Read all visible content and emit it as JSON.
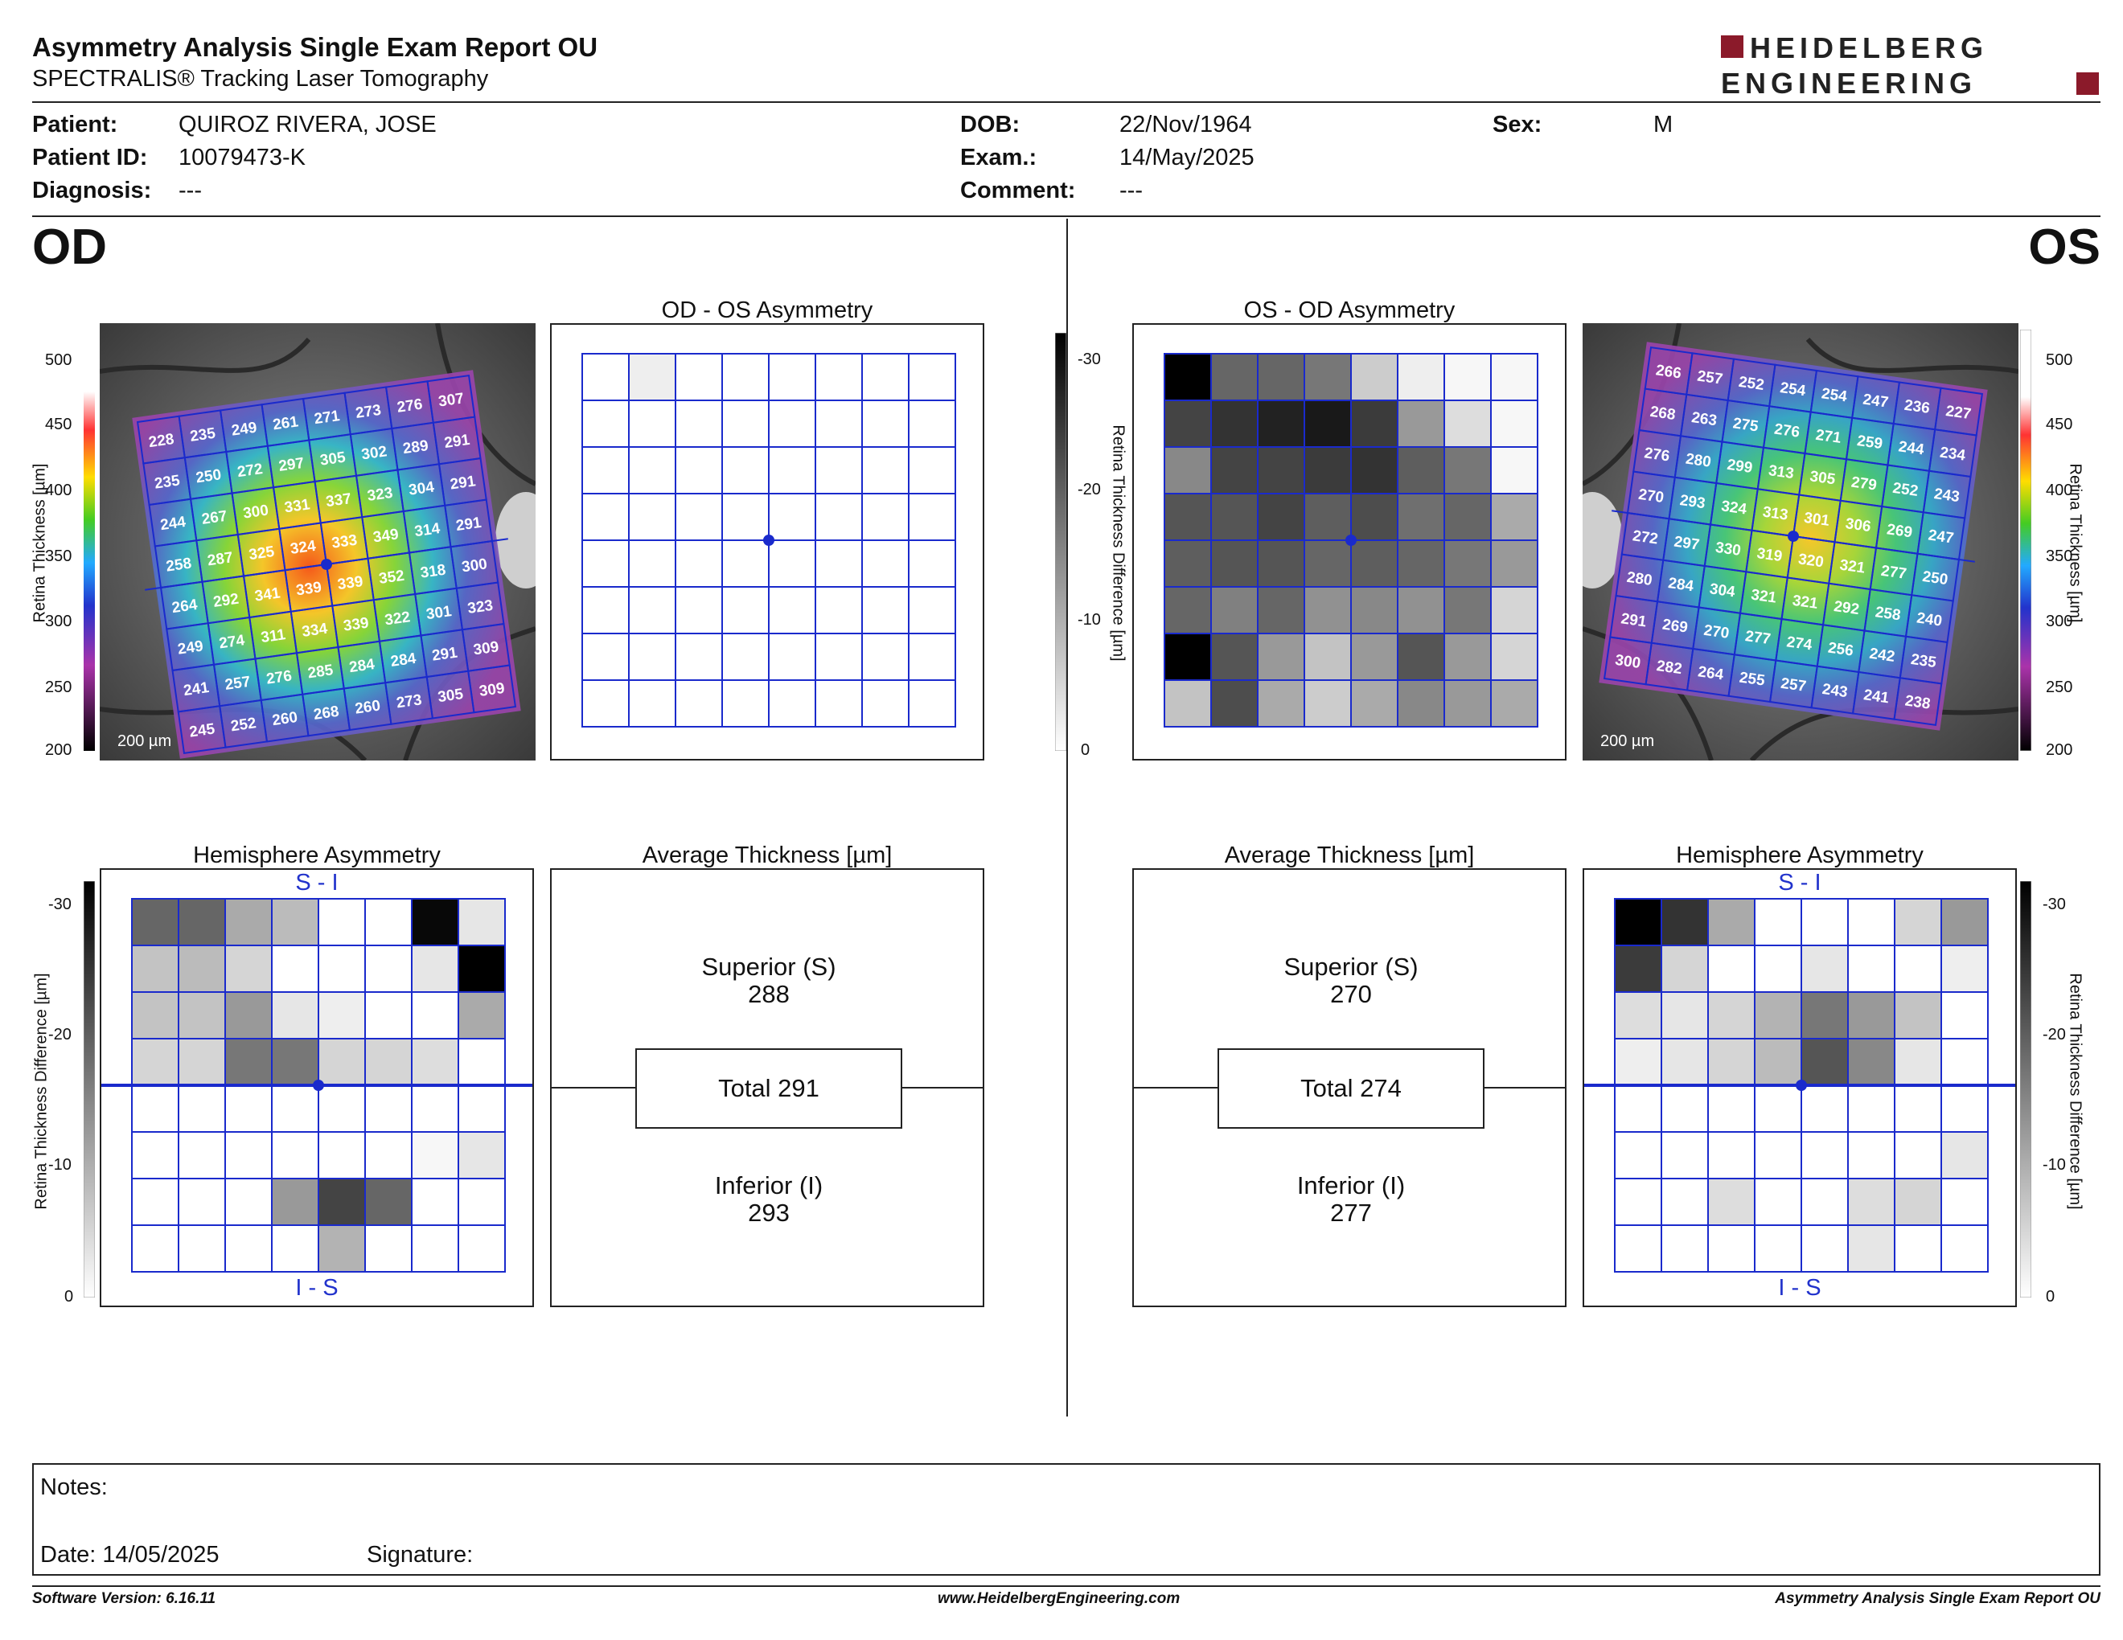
{
  "header": {
    "title": "Asymmetry Analysis Single Exam Report OU",
    "subtitle": "SPECTRALIS® Tracking Laser Tomography",
    "logo_line1": "HEIDELBERG",
    "logo_line2": "ENGINEERING",
    "brand_color": "#8b1a2a"
  },
  "patient": {
    "patient_label": "Patient:",
    "patient_value": "QUIROZ RIVERA, JOSE",
    "id_label": "Patient ID:",
    "id_value": "10079473-K",
    "diag_label": "Diagnosis:",
    "diag_value": "---",
    "dob_label": "DOB:",
    "dob_value": "22/Nov/1964",
    "exam_label": "Exam.:",
    "exam_value": "14/May/2025",
    "comment_label": "Comment:",
    "comment_value": "---",
    "sex_label": "Sex:",
    "sex_value": "M"
  },
  "od": {
    "eye_label": "OD",
    "asym_title": "OD - OS Asymmetry",
    "hemi_title": "Hemisphere Asymmetry",
    "avg_title": "Average Thickness [µm]",
    "superior_label": "Superior (S)",
    "superior_value": "288",
    "total_label": "Total 291",
    "inferior_label": "Inferior (I)",
    "inferior_value": "293",
    "scale_label": "200 µm",
    "si_top": "S - I",
    "si_bottom": "I - S",
    "thickness_grid": [
      [
        228,
        235,
        249,
        261,
        271,
        273,
        276,
        307
      ],
      [
        235,
        250,
        272,
        297,
        305,
        302,
        289,
        291
      ],
      [
        244,
        267,
        300,
        331,
        337,
        323,
        304,
        291
      ],
      [
        258,
        287,
        325,
        324,
        333,
        349,
        314,
        291
      ],
      [
        264,
        292,
        341,
        339,
        339,
        352,
        318,
        300
      ],
      [
        249,
        274,
        311,
        334,
        339,
        322,
        301,
        323
      ],
      [
        241,
        257,
        276,
        285,
        284,
        284,
        291,
        309
      ],
      [
        245,
        252,
        260,
        268,
        260,
        273,
        305,
        309
      ]
    ],
    "asym_grid": [
      [
        0,
        2,
        0,
        0,
        0,
        0,
        0,
        0
      ],
      [
        0,
        0,
        0,
        0,
        0,
        0,
        0,
        0
      ],
      [
        0,
        0,
        0,
        0,
        0,
        0,
        0,
        0
      ],
      [
        0,
        0,
        0,
        0,
        0,
        0,
        0,
        0
      ],
      [
        0,
        0,
        0,
        0,
        0,
        0,
        0,
        0
      ],
      [
        0,
        0,
        0,
        0,
        0,
        0,
        0,
        0
      ],
      [
        0,
        0,
        0,
        0,
        0,
        0,
        0,
        0
      ],
      [
        0,
        0,
        0,
        0,
        0,
        0,
        0,
        0
      ]
    ],
    "hemi_grid": [
      [
        18,
        18,
        10,
        8,
        0,
        0,
        29,
        3
      ],
      [
        7,
        8,
        5,
        0,
        0,
        0,
        3,
        30
      ],
      [
        7,
        7,
        12,
        3,
        2,
        0,
        0,
        10
      ],
      [
        5,
        5,
        16,
        16,
        5,
        5,
        4,
        0
      ],
      [
        0,
        0,
        0,
        0,
        0,
        0,
        0,
        0
      ],
      [
        0,
        0,
        0,
        0,
        0,
        0,
        1,
        3
      ],
      [
        0,
        0,
        0,
        12,
        22,
        18,
        0,
        0
      ],
      [
        0,
        0,
        0,
        0,
        9,
        0,
        0,
        0
      ]
    ]
  },
  "os": {
    "eye_label": "OS",
    "asym_title": "OS - OD Asymmetry",
    "hemi_title": "Hemisphere Asymmetry",
    "avg_title": "Average Thickness [µm]",
    "superior_label": "Superior (S)",
    "superior_value": "270",
    "total_label": "Total 274",
    "inferior_label": "Inferior (I)",
    "inferior_value": "277",
    "scale_label": "200 µm",
    "si_top": "S - I",
    "si_bottom": "I - S",
    "thickness_grid": [
      [
        266,
        257,
        252,
        254,
        254,
        247,
        236,
        227
      ],
      [
        268,
        263,
        275,
        276,
        271,
        259,
        244,
        234
      ],
      [
        276,
        280,
        299,
        313,
        305,
        279,
        252,
        243
      ],
      [
        270,
        293,
        324,
        313,
        301,
        306,
        269,
        247
      ],
      [
        272,
        297,
        330,
        319,
        320,
        321,
        277,
        250
      ],
      [
        280,
        284,
        304,
        321,
        321,
        292,
        258,
        240
      ],
      [
        291,
        269,
        270,
        277,
        274,
        256,
        242,
        235
      ],
      [
        300,
        282,
        264,
        255,
        257,
        243,
        241,
        238
      ]
    ],
    "asym_grid": [
      [
        30,
        18,
        18,
        16,
        6,
        2,
        1,
        1
      ],
      [
        22,
        24,
        26,
        27,
        23,
        12,
        4,
        1
      ],
      [
        14,
        22,
        22,
        23,
        24,
        19,
        16,
        1
      ],
      [
        20,
        20,
        22,
        19,
        21,
        17,
        18,
        10
      ],
      [
        19,
        20,
        20,
        18,
        19,
        18,
        16,
        12
      ],
      [
        18,
        15,
        18,
        13,
        14,
        13,
        16,
        5
      ],
      [
        30,
        20,
        12,
        7,
        12,
        20,
        12,
        5
      ],
      [
        7,
        21,
        10,
        6,
        10,
        14,
        12,
        10
      ]
    ],
    "hemi_grid": [
      [
        30,
        24,
        10,
        0,
        0,
        0,
        5,
        12
      ],
      [
        23,
        5,
        0,
        0,
        3,
        0,
        0,
        2
      ],
      [
        4,
        3,
        5,
        9,
        16,
        12,
        7,
        0
      ],
      [
        2,
        3,
        5,
        8,
        20,
        14,
        3,
        0
      ],
      [
        0,
        0,
        0,
        0,
        0,
        0,
        0,
        0
      ],
      [
        0,
        0,
        0,
        0,
        0,
        0,
        0,
        3
      ],
      [
        0,
        0,
        4,
        0,
        0,
        4,
        5,
        0
      ],
      [
        0,
        0,
        0,
        0,
        0,
        3,
        0,
        0
      ]
    ]
  },
  "colorbar": {
    "thickness_ticks": [
      "500",
      "450",
      "400",
      "350",
      "300",
      "250",
      "200"
    ],
    "thickness_axis_label": "Retina Thickness [µm]",
    "diff_ticks": [
      "-30",
      "-20",
      "-10",
      "0"
    ],
    "diff_axis_label": "Retina Thickness Difference [µm]"
  },
  "notes": {
    "notes_label": "Notes:",
    "date_label": "Date: 14/05/2025",
    "signature_label": "Signature:"
  },
  "footer": {
    "software": "Software Version: 6.16.11",
    "website": "www.HeidelbergEngineering.com",
    "report": "Asymmetry Analysis Single Exam Report OU"
  },
  "grid_color": "#1a2acc"
}
